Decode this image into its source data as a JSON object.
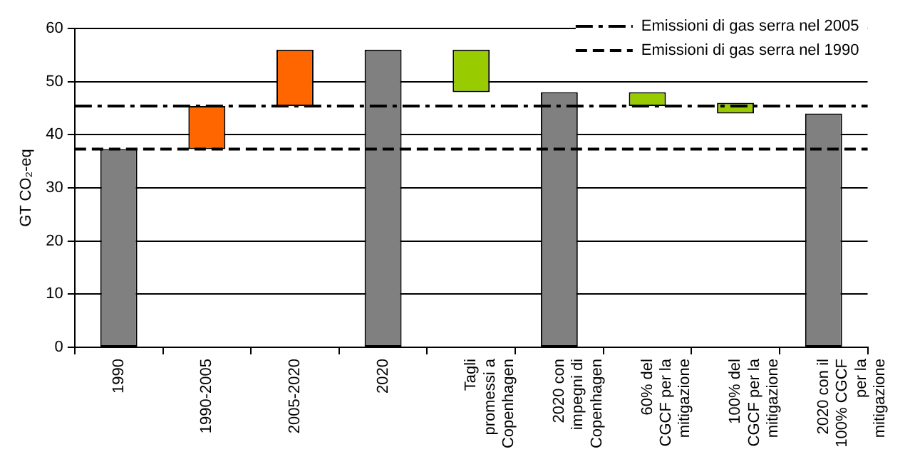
{
  "chart_data": {
    "type": "bar",
    "ylabel": "GT CO₂-eq",
    "categories": [
      "1990",
      "1990-2005",
      "2005-2020",
      "2020",
      "Tagli promessi a Copenhagen",
      "2020 con impegni di Copenhagen",
      "60% del CGCF per la mitigazione",
      "100% del CGCF per la mitigazione",
      "2020 con il 100% CGCF per la mitigazione"
    ],
    "values": [
      37.3,
      8.1,
      10.6,
      56,
      8,
      48,
      2.6,
      2,
      44
    ],
    "base": [
      0,
      37.3,
      45.4,
      0,
      48,
      0,
      45.4,
      44,
      0
    ],
    "colors": [
      "#808080",
      "#ff6600",
      "#ff6600",
      "#808080",
      "#99cc00",
      "#808080",
      "#99cc00",
      "#99cc00",
      "#808080"
    ],
    "ylim": [
      0,
      60
    ],
    "yticks": [
      0,
      10,
      20,
      30,
      40,
      50,
      60
    ],
    "grid": "y",
    "legend": "top right",
    "ref_lines": [
      {
        "axis": "y",
        "value": 45.4,
        "label": "Emissioni di gas serra nel 2005",
        "color": "#000000",
        "line_style": "dashdot"
      },
      {
        "axis": "y",
        "value": 37.3,
        "label": "Emissioni di gas serra nel 1990",
        "color": "#000000",
        "line_style": "dashed"
      }
    ]
  }
}
